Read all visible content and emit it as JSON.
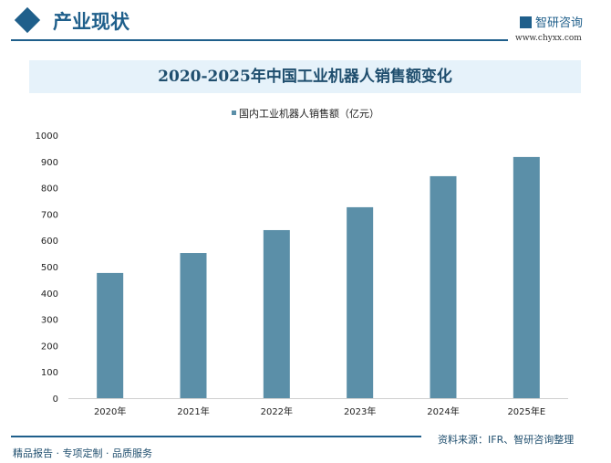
{
  "header": {
    "section_title": "产业现状",
    "brand": "智研咨询",
    "url": "www.chyxx.com"
  },
  "footer": {
    "slogan": "精品报告 · 专项定制 · 品质服务",
    "source": "资料来源：IFR、智研咨询整理"
  },
  "colors": {
    "bar": "#5b8fa8",
    "accent": "#1f5f8b"
  },
  "chart_data": {
    "type": "bar",
    "title": "2020-2025年中国工业机器人销售额变化",
    "legend": "国内工业机器人销售额（亿元）",
    "legend_position": "top",
    "categories": [
      "2020年",
      "2021年",
      "2022年",
      "2023年",
      "2024年",
      "2025年E"
    ],
    "series": [
      {
        "name": "国内工业机器人销售额（亿元）",
        "values": [
          476,
          552,
          639,
          726,
          844,
          917
        ]
      }
    ],
    "ylim": [
      0,
      1000
    ],
    "yticks": [
      0,
      100,
      200,
      300,
      400,
      500,
      600,
      700,
      800,
      900,
      1000
    ],
    "grid": false
  }
}
